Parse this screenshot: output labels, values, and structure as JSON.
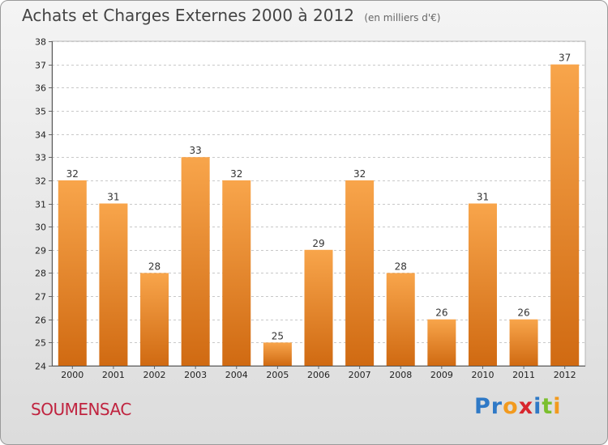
{
  "header": {
    "title": "Achats et Charges Externes 2000 à 2012",
    "subtitle": "(en milliers d'€)"
  },
  "footer": {
    "commune": "SOUMENSAC",
    "logo_letters": [
      {
        "char": "P",
        "color": "#2f79c6"
      },
      {
        "char": "r",
        "color": "#2f79c6"
      },
      {
        "char": "o",
        "color": "#f29a1e"
      },
      {
        "char": "x",
        "color": "#d8262e"
      },
      {
        "char": "i",
        "color": "#2f79c6"
      },
      {
        "char": "t",
        "color": "#7bbf2e"
      },
      {
        "char": "i",
        "color": "#f29a1e"
      }
    ]
  },
  "colors": {
    "bar_top": "#f8a54b",
    "bar_bottom": "#d06a12",
    "grid": "#c8c8c8",
    "plot_bg": "#ffffff"
  },
  "chart_data": {
    "type": "bar",
    "title": "Achats et Charges Externes 2000 à 2012",
    "subtitle": "(en milliers d'€)",
    "categories": [
      "2000",
      "2001",
      "2002",
      "2003",
      "2004",
      "2005",
      "2006",
      "2007",
      "2008",
      "2009",
      "2010",
      "2011",
      "2012"
    ],
    "values": [
      32,
      31,
      28,
      33,
      32,
      25,
      29,
      32,
      28,
      26,
      31,
      26,
      37
    ],
    "ylim": [
      24,
      38
    ],
    "yticks": [
      24,
      25,
      26,
      27,
      28,
      29,
      30,
      31,
      32,
      33,
      34,
      35,
      36,
      37,
      38
    ],
    "xlabel": "",
    "ylabel": "",
    "grid": true,
    "legend": "none"
  }
}
